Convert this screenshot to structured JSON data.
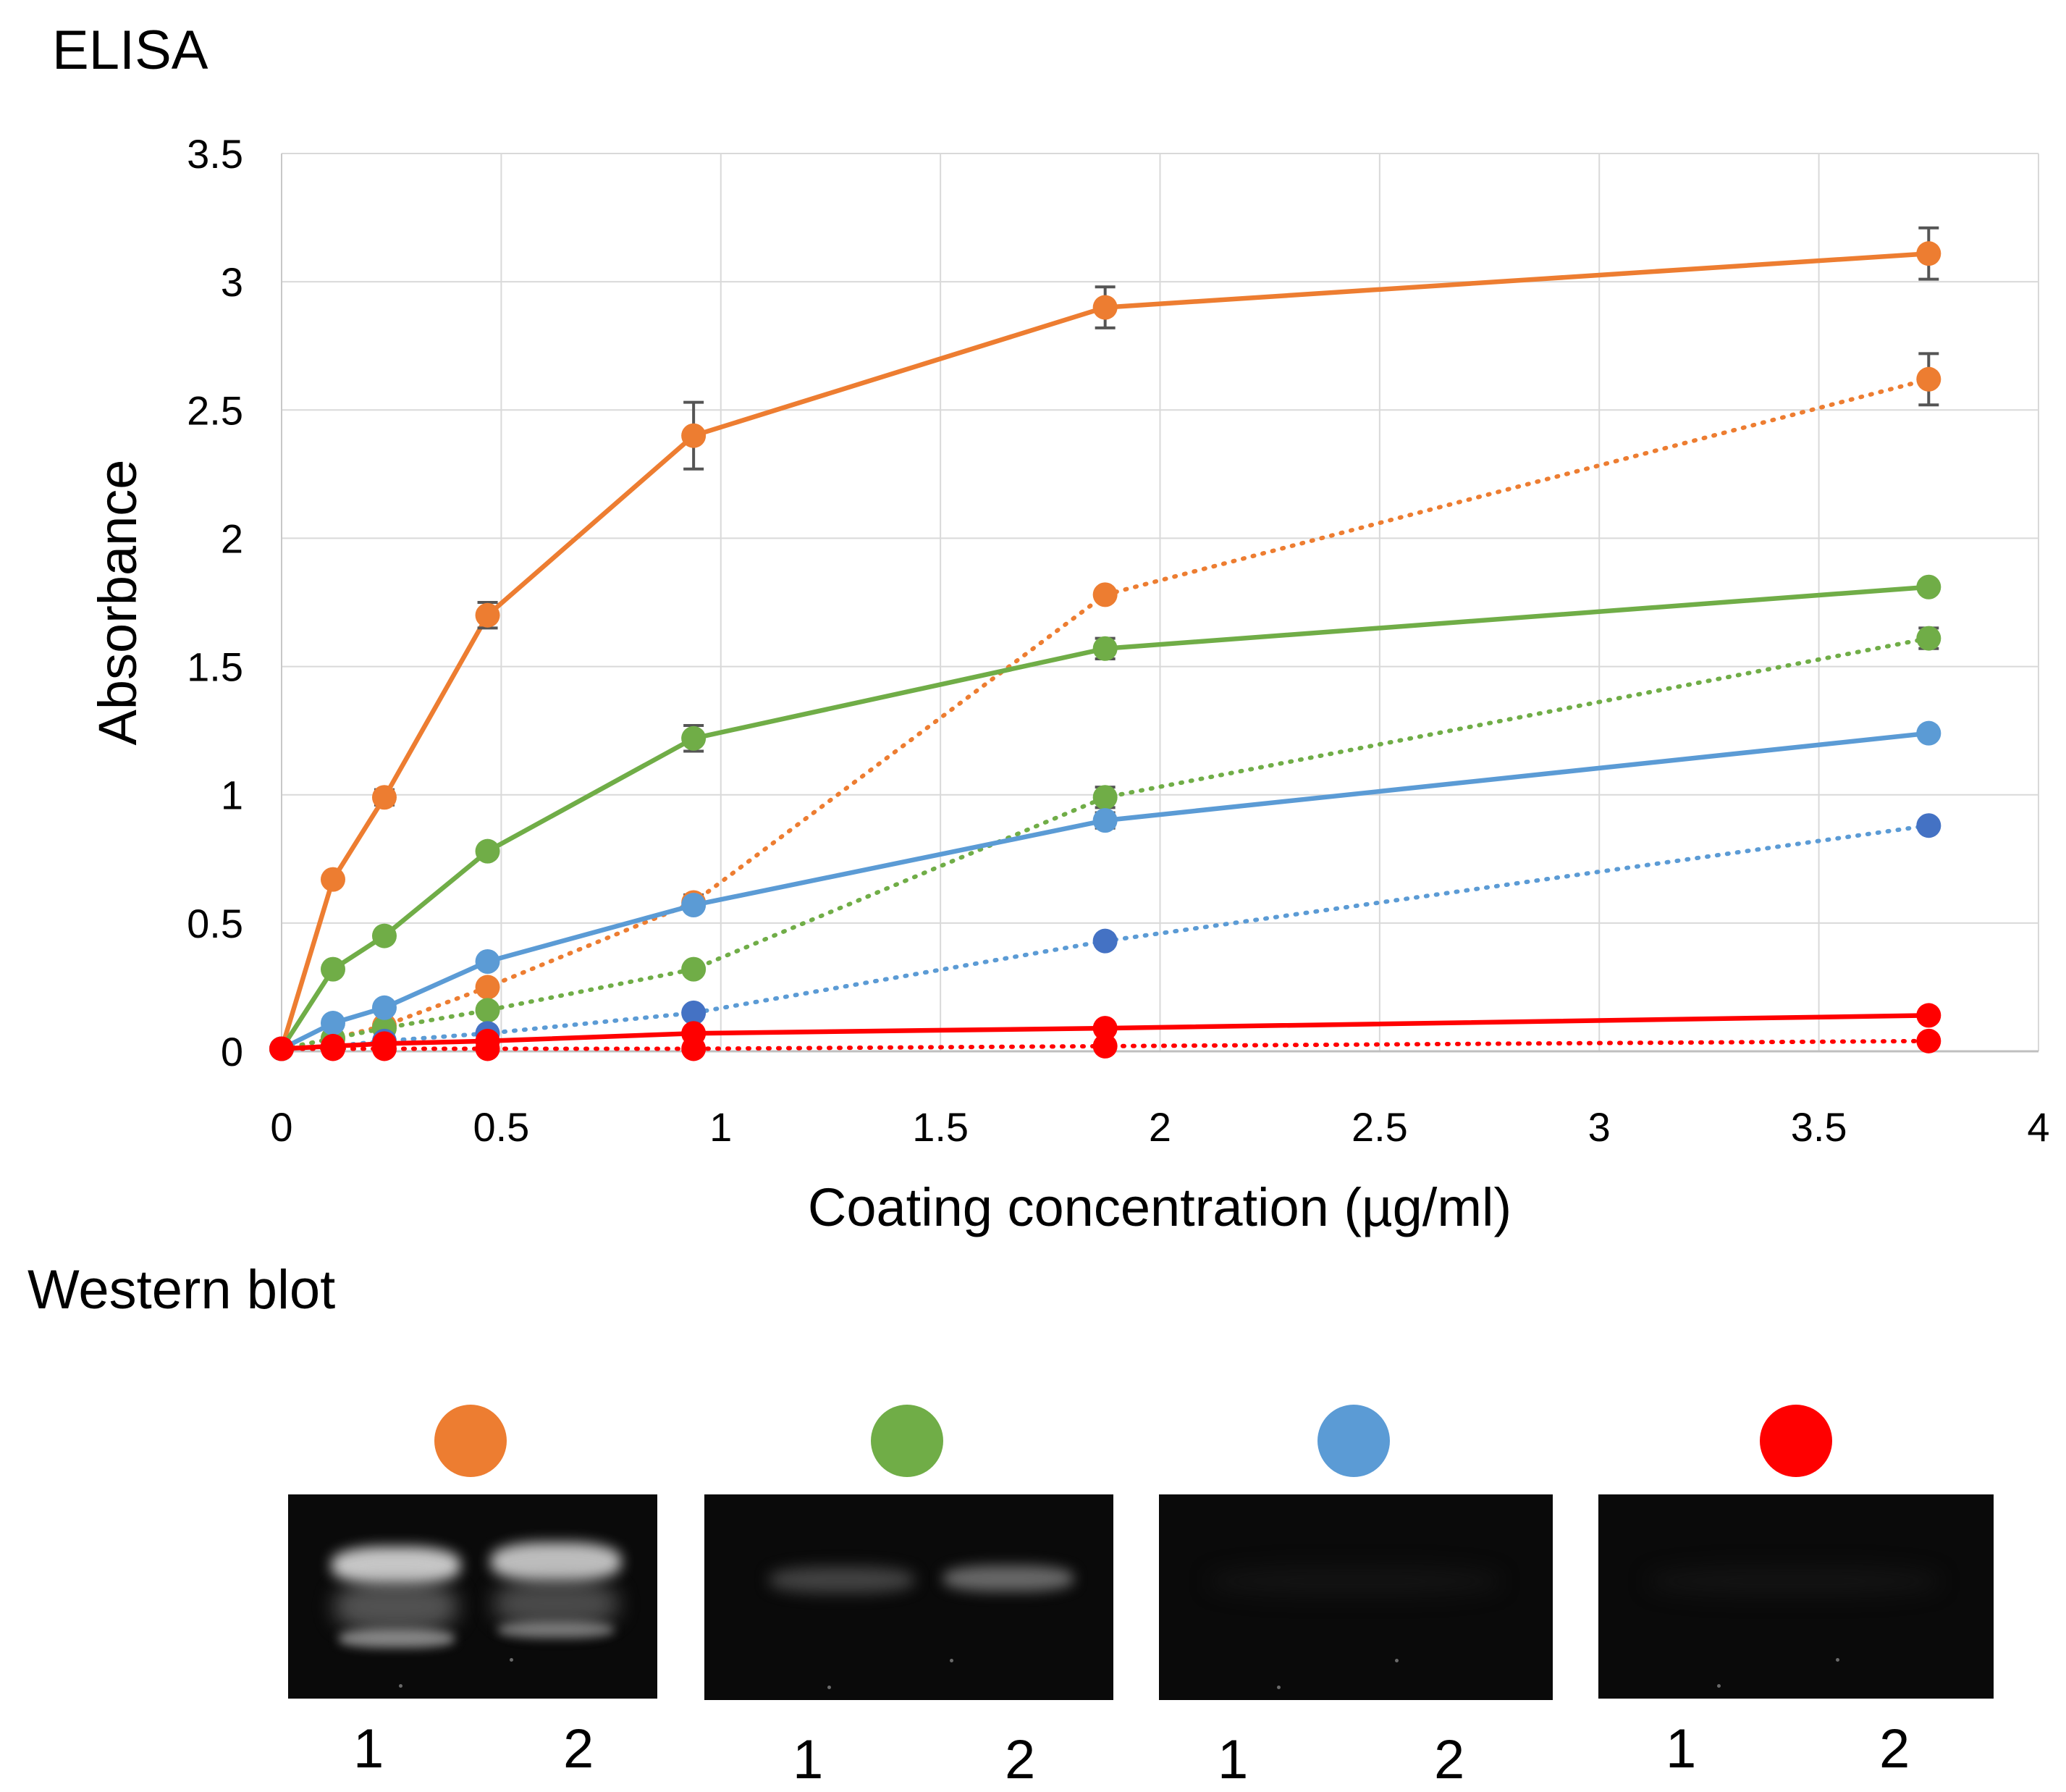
{
  "elisa_title": "ELISA",
  "western_title": "Western blot",
  "colors": {
    "orange": "#ED7D31",
    "green": "#70AD47",
    "blue": "#5B9BD5",
    "dark_blue": "#4472C4",
    "red": "#FF0000",
    "grid": "#D9D9D9",
    "error_bar": "#555555"
  },
  "chart_data": {
    "type": "line",
    "xlabel": "Coating concentration (µg/ml)",
    "ylabel": "Absorbance",
    "xlim": [
      0,
      4
    ],
    "ylim": [
      0,
      3.5
    ],
    "xticks": [
      0,
      0.5,
      1,
      1.5,
      2,
      2.5,
      3,
      3.5,
      4
    ],
    "xtick_labels": [
      "0",
      "0.5",
      "1",
      "1.5",
      "2",
      "2.5",
      "3",
      "3.5",
      "4"
    ],
    "yticks": [
      0,
      0.5,
      1,
      1.5,
      2,
      2.5,
      3,
      3.5
    ],
    "ytick_labels": [
      "0",
      "0.5",
      "1",
      "1.5",
      "2",
      "2.5",
      "3",
      "3.5"
    ],
    "grid": true,
    "x": [
      0,
      0.117,
      0.234,
      0.469,
      0.938,
      1.875,
      3.75
    ],
    "series": [
      {
        "name": "orange-solid",
        "color": "orange",
        "dash": false,
        "values": [
          0.01,
          0.67,
          0.99,
          1.7,
          2.4,
          2.9,
          3.11
        ],
        "errors": [
          0,
          0,
          0.03,
          0.05,
          0.13,
          0.08,
          0.1
        ]
      },
      {
        "name": "orange-dotted",
        "color": "orange",
        "dash": true,
        "values": [
          0.01,
          0.05,
          0.1,
          0.25,
          0.58,
          1.78,
          2.62
        ],
        "errors": [
          0,
          0,
          0,
          0,
          0.03,
          0,
          0.1
        ]
      },
      {
        "name": "green-solid",
        "color": "green",
        "dash": false,
        "values": [
          0.01,
          0.32,
          0.45,
          0.78,
          1.22,
          1.57,
          1.81
        ],
        "errors": [
          0,
          0,
          0,
          0,
          0.05,
          0.04,
          0
        ]
      },
      {
        "name": "green-dotted",
        "color": "green",
        "dash": true,
        "values": [
          0.01,
          0.05,
          0.09,
          0.16,
          0.32,
          0.99,
          1.61
        ],
        "errors": [
          0,
          0,
          0,
          0,
          0,
          0.04,
          0.04
        ]
      },
      {
        "name": "blue-solid",
        "color": "blue",
        "dash": false,
        "values": [
          0.01,
          0.11,
          0.17,
          0.35,
          0.57,
          0.9,
          1.24
        ],
        "errors": [
          0,
          0,
          0,
          0,
          0.02,
          0.03,
          0
        ]
      },
      {
        "name": "blue-dotted",
        "color": "blue",
        "dash": true,
        "marker_color": "dark_blue",
        "values": [
          0.01,
          0.02,
          0.04,
          0.07,
          0.15,
          0.43,
          0.88
        ],
        "errors": [
          0,
          0,
          0,
          0,
          0,
          0,
          0
        ]
      },
      {
        "name": "red-solid",
        "color": "red",
        "dash": false,
        "values": [
          0.01,
          0.02,
          0.03,
          0.04,
          0.07,
          0.09,
          0.14
        ],
        "errors": [
          0,
          0,
          0,
          0,
          0,
          0,
          0
        ]
      },
      {
        "name": "red-dotted",
        "color": "red",
        "dash": true,
        "values": [
          0.01,
          0.01,
          0.01,
          0.01,
          0.01,
          0.02,
          0.04
        ],
        "errors": [
          0,
          0,
          0,
          0,
          0,
          0,
          0
        ]
      }
    ]
  },
  "blots": [
    {
      "color": "orange",
      "lane1": "1",
      "lane2": "2",
      "intensity": "strong"
    },
    {
      "color": "green",
      "lane1": "1",
      "lane2": "2",
      "intensity": "weak"
    },
    {
      "color": "blue",
      "lane1": "1",
      "lane2": "2",
      "intensity": "none"
    },
    {
      "color": "red",
      "lane1": "1",
      "lane2": "2",
      "intensity": "none"
    }
  ]
}
